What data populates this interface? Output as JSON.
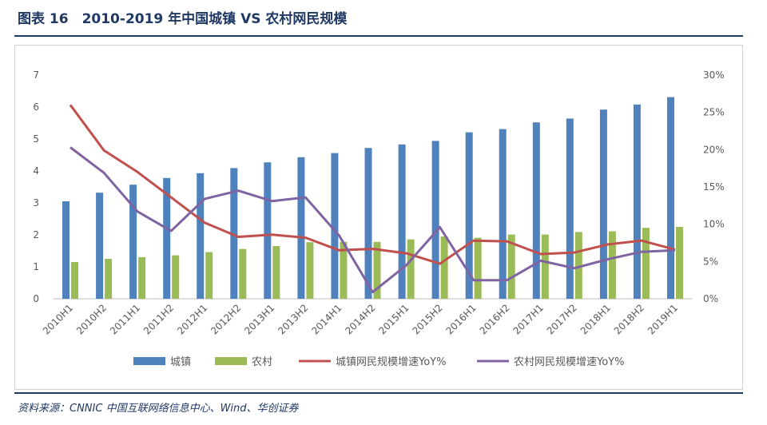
{
  "title": "图表 16　2010-2019 年中国城镇 VS 农村网民规模",
  "source": "资料来源：CNNIC 中国互联网络信息中心、Wind、华创证券",
  "colors": {
    "urban_bar": "#4f81bd",
    "rural_bar": "#9bbb59",
    "urban_line": "#c0504d",
    "rural_line": "#8064a2",
    "brand": "#1f3864"
  },
  "chart_data": {
    "type": "bar",
    "categories": [
      "2010H1",
      "2010H2",
      "2011H1",
      "2011H2",
      "2012H1",
      "2012H2",
      "2013H1",
      "2013H2",
      "2014H1",
      "2014H2",
      "2015H1",
      "2015H2",
      "2016H1",
      "2016H2",
      "2017H1",
      "2017H2",
      "2018H1",
      "2018H2",
      "2019H1"
    ],
    "left_axis": {
      "ticks": [
        "0",
        "1",
        "2",
        "3",
        "4",
        "5",
        "6",
        "7"
      ],
      "ylim": [
        0,
        7
      ]
    },
    "right_axis": {
      "ticks": [
        "0%",
        "5%",
        "10%",
        "15%",
        "20%",
        "25%",
        "30%"
      ],
      "ylim": [
        0,
        30
      ]
    },
    "series": [
      {
        "name": "城镇",
        "type": "bar",
        "axis": "left",
        "values": [
          3.05,
          3.32,
          3.57,
          3.78,
          3.93,
          4.09,
          4.27,
          4.43,
          4.56,
          4.72,
          4.83,
          4.94,
          5.21,
          5.31,
          5.52,
          5.64,
          5.92,
          6.08,
          6.31
        ]
      },
      {
        "name": "农村",
        "type": "bar",
        "axis": "left",
        "values": [
          1.15,
          1.25,
          1.3,
          1.36,
          1.46,
          1.56,
          1.65,
          1.77,
          1.78,
          1.78,
          1.86,
          1.95,
          1.91,
          2.01,
          2.01,
          2.09,
          2.11,
          2.22,
          2.25
        ]
      },
      {
        "name": "城镇网民规模增速YoY%",
        "type": "line",
        "axis": "right",
        "values": [
          26.0,
          19.9,
          17.0,
          13.6,
          10.2,
          8.3,
          8.6,
          8.2,
          6.5,
          6.7,
          6.1,
          4.7,
          7.8,
          7.7,
          6.0,
          6.2,
          7.3,
          7.8,
          6.6
        ]
      },
      {
        "name": "农村网民规模增速YoY%",
        "type": "line",
        "axis": "right",
        "values": [
          20.3,
          16.9,
          11.7,
          9.1,
          13.4,
          14.5,
          13.1,
          13.6,
          8.5,
          0.9,
          4.5,
          9.6,
          2.5,
          2.5,
          5.1,
          4.1,
          5.3,
          6.3,
          6.5
        ]
      }
    ],
    "legend_position": "bottom",
    "grid": false
  }
}
